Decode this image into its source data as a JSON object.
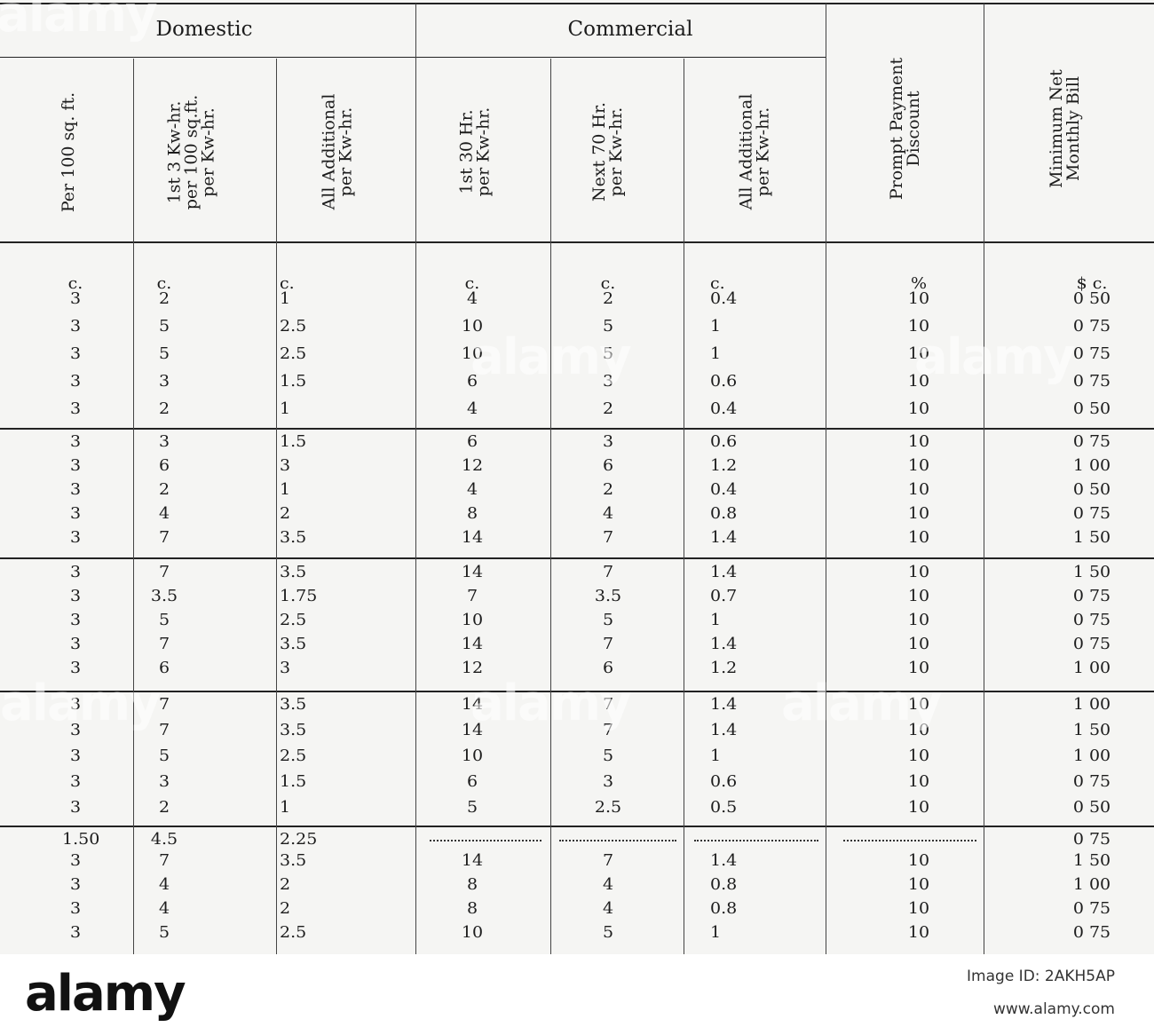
{
  "headers": {
    "domestic": "Domestic",
    "commercial": "Commercial",
    "columns": [
      "Per 100 sq. ft.",
      "1st 3 Kw-hr.\nper 100 sq.ft.\nper Kw-hr.",
      "All Additional\nper Kw-hr.",
      "1st 30 Hr.\nper Kw-hr.",
      "Next 70 Hr.\nper Kw-hr.",
      "All Additional\nper Kw-hr.",
      "Prompt Payment\nDiscount",
      "Minimum Net\nMonthly Bill"
    ]
  },
  "units": [
    "c.",
    "c.",
    "c.",
    "c.",
    "c.",
    "c.",
    "%",
    "$ c."
  ],
  "rows": [
    [
      "3",
      "2",
      "1",
      "4",
      "2",
      "0.4",
      "10",
      "0 50"
    ],
    [
      "3",
      "5",
      "2.5",
      "10",
      "5",
      "1",
      "10",
      "0 75"
    ],
    [
      "3",
      "5",
      "2.5",
      "10",
      "5",
      "1",
      "10",
      "0 75"
    ],
    [
      "3",
      "3",
      "1.5",
      "6",
      "3",
      "0.6",
      "10",
      "0 75"
    ],
    [
      "3",
      "2",
      "1",
      "4",
      "2",
      "0.4",
      "10",
      "0 50"
    ],
    [
      "3",
      "3",
      "1.5",
      "6",
      "3",
      "0.6",
      "10",
      "0 75"
    ],
    [
      "3",
      "6",
      "3",
      "12",
      "6",
      "1.2",
      "10",
      "1 00"
    ],
    [
      "3",
      "2",
      "1",
      "4",
      "2",
      "0.4",
      "10",
      "0 50"
    ],
    [
      "3",
      "4",
      "2",
      "8",
      "4",
      "0.8",
      "10",
      "0 75"
    ],
    [
      "3",
      "7",
      "3.5",
      "14",
      "7",
      "1.4",
      "10",
      "1 50"
    ],
    [
      "3",
      "7",
      "3.5",
      "14",
      "7",
      "1.4",
      "10",
      "1 50"
    ],
    [
      "3",
      "3.5",
      "1.75",
      "7",
      "3.5",
      "0.7",
      "10",
      "0 75"
    ],
    [
      "3",
      "5",
      "2.5",
      "10",
      "5",
      "1",
      "10",
      "0 75"
    ],
    [
      "3",
      "7",
      "3.5",
      "14",
      "7",
      "1.4",
      "10",
      "0 75"
    ],
    [
      "3",
      "6",
      "3",
      "12",
      "6",
      "1.2",
      "10",
      "1 00"
    ],
    [
      "3",
      "7",
      "3.5",
      "14",
      "7",
      "1.4",
      "10",
      "1 00"
    ],
    [
      "3",
      "7",
      "3.5",
      "14",
      "7",
      "1.4",
      "10",
      "1 50"
    ],
    [
      "3",
      "5",
      "2.5",
      "10",
      "5",
      "1",
      "10",
      "1 00"
    ],
    [
      "3",
      "3",
      "1.5",
      "6",
      "3",
      "0.6",
      "10",
      "0 75"
    ],
    [
      "3",
      "2",
      "1",
      "5",
      "2.5",
      "0.5",
      "10",
      "0 50"
    ],
    [
      "1.50",
      "4.5",
      "2.25",
      "",
      "",
      "",
      "",
      "0 75"
    ],
    [
      "3",
      "7",
      "3.5",
      "14",
      "7",
      "1.4",
      "10",
      "1 50"
    ],
    [
      "3",
      "4",
      "2",
      "8",
      "4",
      "0.8",
      "10",
      "1 00"
    ],
    [
      "3",
      "4",
      "2",
      "8",
      "4",
      "0.8",
      "10",
      "0 75"
    ],
    [
      "3",
      "5",
      "2.5",
      "10",
      "5",
      "1",
      "10",
      "0 75"
    ]
  ],
  "footer": {
    "brand": "alamy",
    "image_id_label": "Image ID: 2AKH5AP",
    "url": "www.alamy.com"
  }
}
